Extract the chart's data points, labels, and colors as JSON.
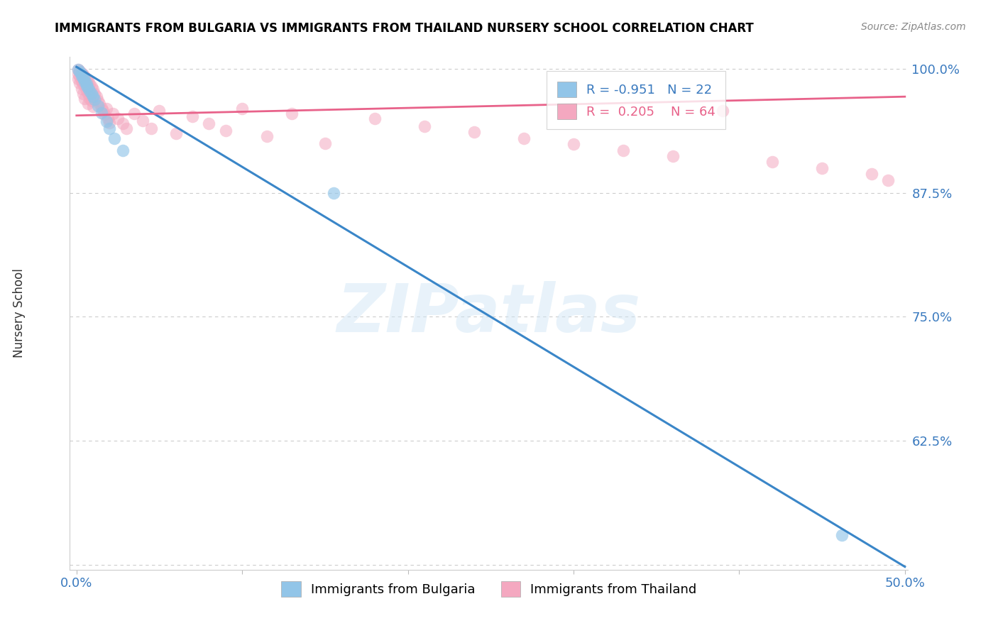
{
  "title": "IMMIGRANTS FROM BULGARIA VS IMMIGRANTS FROM THAILAND NURSERY SCHOOL CORRELATION CHART",
  "source": "Source: ZipAtlas.com",
  "ylabel": "Nursery School",
  "xlim_min": -0.004,
  "xlim_max": 0.502,
  "ylim_min": 0.495,
  "ylim_max": 1.012,
  "xtick_vals": [
    0.0,
    0.1,
    0.2,
    0.3,
    0.4,
    0.5
  ],
  "xtick_labels": [
    "0.0%",
    "",
    "",
    "",
    "",
    "50.0%"
  ],
  "ytick_vals": [
    0.5,
    0.625,
    0.75,
    0.875,
    1.0
  ],
  "ytick_labels": [
    "",
    "62.5%",
    "75.0%",
    "87.5%",
    "100.0%"
  ],
  "bulgaria_R": -0.951,
  "bulgaria_N": 22,
  "thailand_R": 0.205,
  "thailand_N": 64,
  "bulgaria_dot_color": "#92c5e8",
  "thailand_dot_color": "#f4a8c0",
  "bulgaria_line_color": "#3a86c8",
  "thailand_line_color": "#e8628a",
  "watermark": "ZIPatlas",
  "bul_line_y0": 1.002,
  "bul_line_y1": 0.498,
  "thai_line_y0": 0.953,
  "thai_line_y1": 0.972,
  "bul_scatter_x": [
    0.001,
    0.002,
    0.003,
    0.003,
    0.004,
    0.005,
    0.005,
    0.006,
    0.006,
    0.007,
    0.008,
    0.009,
    0.01,
    0.011,
    0.013,
    0.015,
    0.018,
    0.02,
    0.023,
    0.028,
    0.155,
    0.462
  ],
  "bul_scatter_y": [
    0.999,
    0.997,
    0.995,
    0.993,
    0.991,
    0.989,
    0.987,
    0.985,
    0.983,
    0.981,
    0.978,
    0.975,
    0.972,
    0.969,
    0.963,
    0.956,
    0.947,
    0.94,
    0.93,
    0.918,
    0.875,
    0.53
  ],
  "thai_scatter_x": [
    0.001,
    0.001,
    0.001,
    0.002,
    0.002,
    0.002,
    0.003,
    0.003,
    0.003,
    0.004,
    0.004,
    0.004,
    0.005,
    0.005,
    0.005,
    0.006,
    0.006,
    0.007,
    0.007,
    0.007,
    0.008,
    0.008,
    0.009,
    0.009,
    0.01,
    0.01,
    0.011,
    0.012,
    0.013,
    0.014,
    0.015,
    0.016,
    0.017,
    0.018,
    0.019,
    0.02,
    0.022,
    0.025,
    0.028,
    0.03,
    0.035,
    0.04,
    0.045,
    0.05,
    0.06,
    0.07,
    0.08,
    0.09,
    0.1,
    0.115,
    0.13,
    0.15,
    0.18,
    0.21,
    0.24,
    0.27,
    0.3,
    0.33,
    0.36,
    0.39,
    0.42,
    0.45,
    0.48,
    0.49
  ],
  "thai_scatter_y": [
    0.999,
    0.995,
    0.99,
    0.998,
    0.992,
    0.986,
    0.996,
    0.988,
    0.98,
    0.994,
    0.985,
    0.975,
    0.992,
    0.983,
    0.97,
    0.99,
    0.978,
    0.988,
    0.975,
    0.965,
    0.985,
    0.97,
    0.982,
    0.968,
    0.979,
    0.962,
    0.975,
    0.972,
    0.968,
    0.965,
    0.961,
    0.958,
    0.954,
    0.96,
    0.95,
    0.946,
    0.955,
    0.95,
    0.945,
    0.94,
    0.955,
    0.948,
    0.94,
    0.958,
    0.935,
    0.952,
    0.945,
    0.938,
    0.96,
    0.932,
    0.955,
    0.925,
    0.95,
    0.942,
    0.936,
    0.93,
    0.924,
    0.918,
    0.912,
    0.958,
    0.906,
    0.9,
    0.894,
    0.888
  ]
}
